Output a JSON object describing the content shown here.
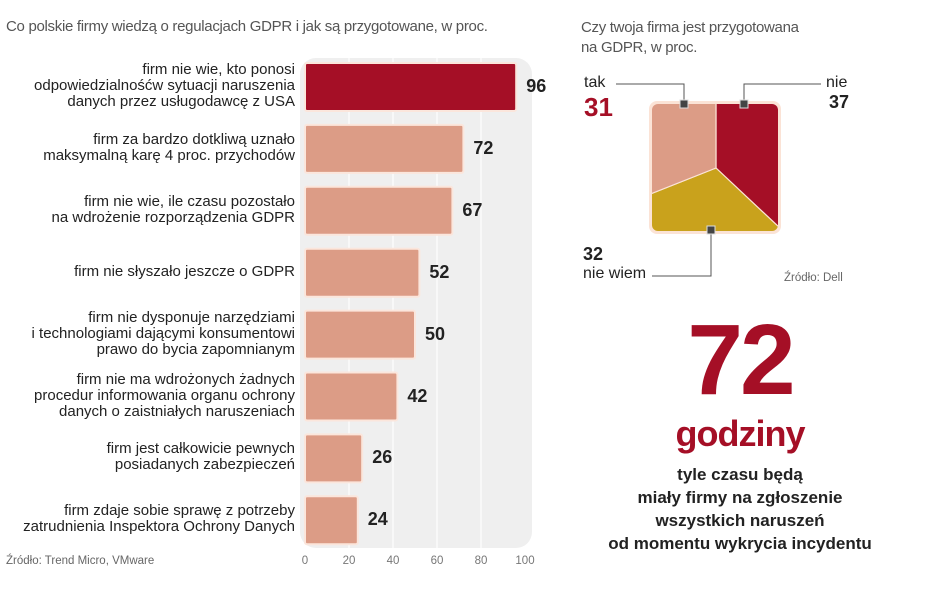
{
  "chart_data": [
    {
      "type": "bar",
      "orientation": "horizontal",
      "title": "Co polskie firmy wiedzą o regulacjach GDPR i jak są przygotowane, w proc.",
      "categories": [
        "firm nie wie, kto ponosi odpowiedzialnośćw sytuacji naruszenia danych przez usługodawcę z USA",
        "firm za bardzo dotkliwą uznało maksymalną karę 4 proc. przychodów",
        "firm nie wie, ile czasu pozostało na wdrożenie rozporządzenia GDPR",
        "firm nie słyszało jeszcze o GDPR",
        "firm nie dysponuje narzędziami i technologiami dającymi konsumentowi prawo do bycia zapomnianym",
        "firm nie ma wdrożonych żadnych procedur informowania organu ochrony danych o zaistniałych naruszeniach",
        "firm jest całkowicie pewnych posiadanych zabezpieczeń",
        "firm zdaje sobie sprawę z potrzeby zatrudnienia Inspektora Ochrony Danych"
      ],
      "label_lines": [
        [
          "firm nie wie, kto ponosi",
          "odpowiedzialnośćw sytuacji naruszenia",
          "danych przez usługodawcę z USA"
        ],
        [
          "firm za bardzo dotkliwą uznało",
          "maksymalną karę 4 proc. przychodów"
        ],
        [
          "firm nie wie, ile czasu pozostało",
          "na wdrożenie rozporządzenia GDPR"
        ],
        [
          "firm nie słyszało jeszcze o GDPR"
        ],
        [
          "firm nie dysponuje narzędziami",
          "i technologiami dającymi konsumentowi",
          "prawo do bycia zapomnianym"
        ],
        [
          "firm nie ma wdrożonych żadnych",
          "procedur informowania organu ochrony",
          "danych o zaistniałych naruszeniach"
        ],
        [
          "firm jest całkowicie pewnych",
          "posiadanych zabezpieczeń"
        ],
        [
          "firm zdaje sobie sprawę z potrzeby",
          "zatrudnienia Inspektora Ochrony Danych"
        ]
      ],
      "values": [
        96,
        72,
        67,
        52,
        50,
        42,
        26,
        24
      ],
      "highlight_index": 0,
      "xlim": [
        0,
        100
      ],
      "xticks": [
        "0",
        "20",
        "40",
        "60",
        "80",
        "100"
      ],
      "grid": true,
      "source": "Źródło: Trend Micro, VMware",
      "colors": {
        "highlight": "#a50f26",
        "bar": "#dc9c86",
        "panel": "#efefef"
      }
    },
    {
      "type": "pie",
      "title_lines": [
        "Czy twoja firma jest przygotowana",
        "na GDPR, w proc."
      ],
      "slices": [
        {
          "label": "nie",
          "value": 37,
          "color": "#a50f26"
        },
        {
          "label": "nie wiem",
          "value": 32,
          "color": "#c9a21c"
        },
        {
          "label": "tak",
          "value": 31,
          "color": "#dc9c86"
        }
      ],
      "source": "Źródło: Dell"
    }
  ],
  "callout": {
    "number": "72",
    "unit": "godziny",
    "text_lines": [
      "tyle czasu będą",
      "miały firmy na zgłoszenie",
      "wszystkich naruszeń",
      "od momentu wykrycia incydentu"
    ],
    "color": "#a50f26"
  }
}
